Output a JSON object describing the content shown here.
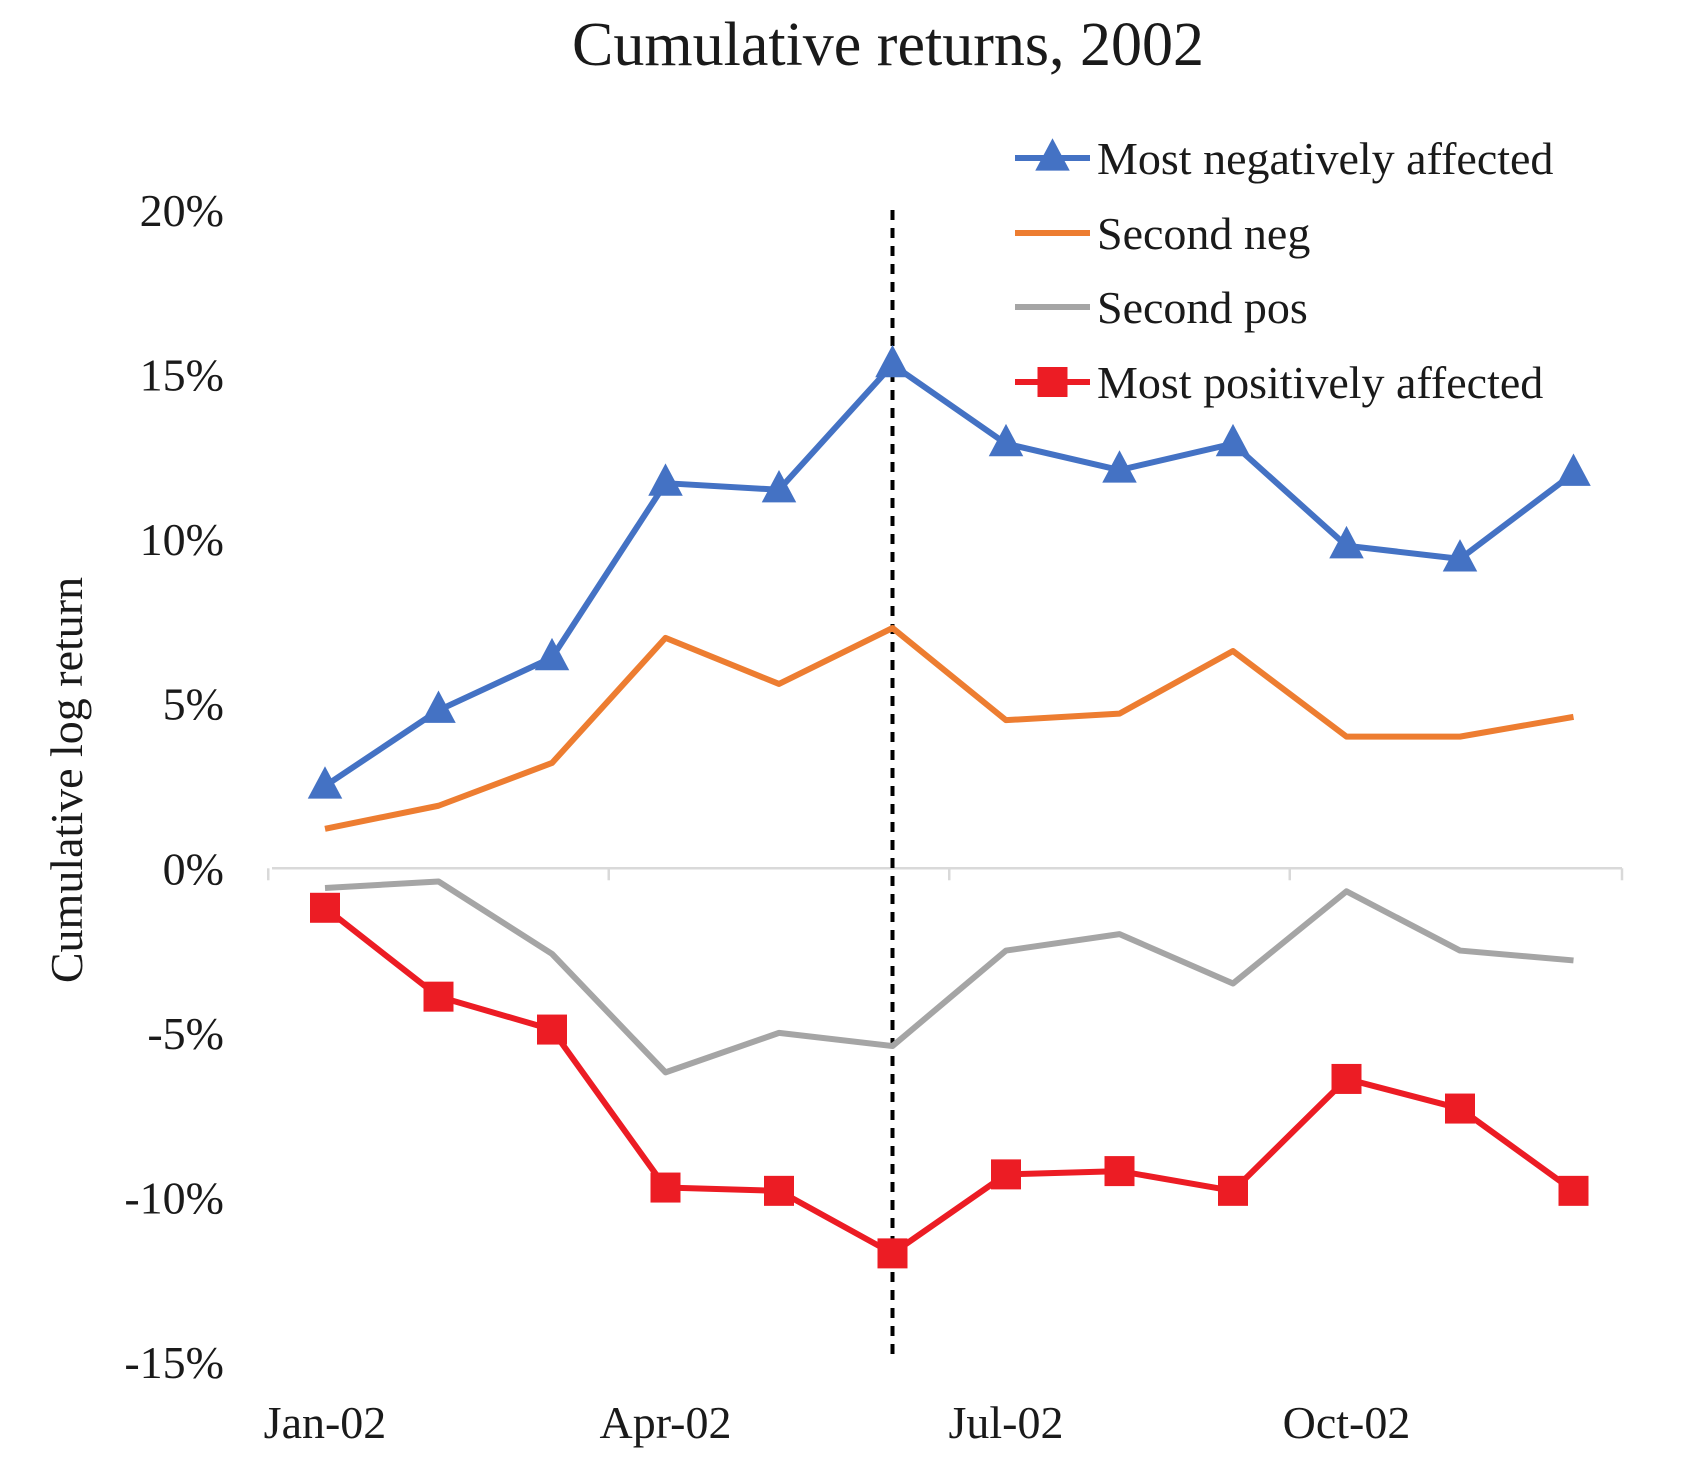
{
  "chart_data": {
    "type": "line",
    "title": "Cumulative returns, 2002",
    "xlabel": "",
    "ylabel": "Cumulative log return",
    "x": [
      "Jan-02",
      "Feb-02",
      "Mar-02",
      "Apr-02",
      "May-02",
      "Jun-02",
      "Jul-02",
      "Aug-02",
      "Sep-02",
      "Oct-02",
      "Nov-02",
      "Dec-02"
    ],
    "x_tick_labels": [
      "Jan-02",
      "Apr-02",
      "Jul-02",
      "Oct-02"
    ],
    "y_tick_labels": [
      "20%",
      "15%",
      "10%",
      "5%",
      "0%",
      "-5%",
      "-10%",
      "-15%"
    ],
    "ylim": [
      -0.15,
      0.2
    ],
    "y_ticks": [
      0.2,
      0.15,
      0.1,
      0.05,
      0.0,
      -0.05,
      -0.1,
      -0.15
    ],
    "vertical_marker": {
      "x": "Jun-02",
      "style": "dashed",
      "color": "#000000"
    },
    "legend_position": "top-right",
    "grid": false,
    "series": [
      {
        "name": "Most negatively affected",
        "color": "#4472C4",
        "marker": "triangle",
        "values": [
          0.025,
          0.048,
          0.064,
          0.117,
          0.115,
          0.153,
          0.129,
          0.121,
          0.129,
          0.098,
          0.094,
          0.12
        ]
      },
      {
        "name": "Second neg",
        "color": "#ED7D31",
        "marker": "none",
        "values": [
          0.012,
          0.019,
          0.032,
          0.07,
          0.056,
          0.073,
          0.045,
          0.047,
          0.066,
          0.04,
          0.04,
          0.046
        ]
      },
      {
        "name": "Second pos",
        "color": "#A5A5A5",
        "marker": "none",
        "values": [
          -0.006,
          -0.004,
          -0.026,
          -0.062,
          -0.05,
          -0.054,
          -0.025,
          -0.02,
          -0.035,
          -0.007,
          -0.025,
          -0.028
        ]
      },
      {
        "name": "Most positively affected",
        "color": "#EC1C24",
        "marker": "square",
        "values": [
          -0.012,
          -0.039,
          -0.049,
          -0.097,
          -0.098,
          -0.117,
          -0.093,
          -0.092,
          -0.098,
          -0.064,
          -0.073,
          -0.098
        ]
      }
    ]
  }
}
